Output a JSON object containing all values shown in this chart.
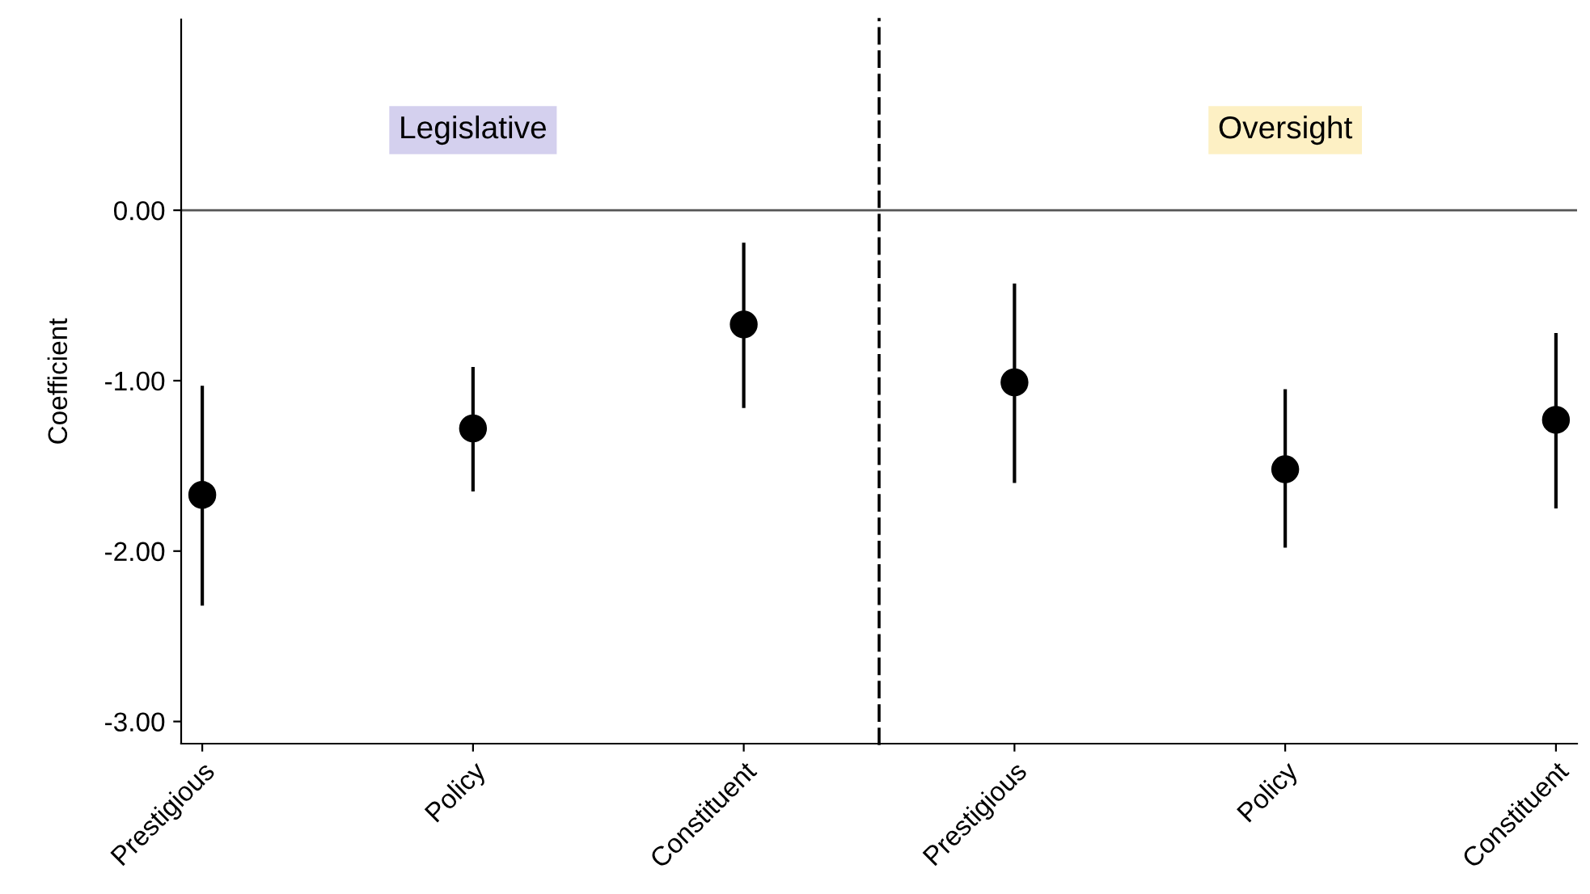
{
  "chart_data": [
    {
      "type": "scatter",
      "ylabel": "Coefficient",
      "categories": [
        "Prestigious",
        "Policy",
        "Constituent"
      ],
      "series": [
        {
          "color": "#000000",
          "values": [
            -1.67,
            -1.28,
            -0.67
          ],
          "errors": [
            [
              -2.31,
              -1.04
            ],
            [
              -1.64,
              -0.93
            ],
            [
              -1.15,
              -0.2
            ]
          ]
        }
      ],
      "ylim": [
        -3.13,
        1.12
      ],
      "yticks": [
        {
          "value": 0,
          "label": "0.00"
        },
        {
          "value": -1,
          "label": "-1.00"
        },
        {
          "value": -2,
          "label": "-2.00"
        },
        {
          "value": -3,
          "label": "-3.00"
        }
      ],
      "ref_lines": [
        {
          "axis": "y",
          "value": 0,
          "color": "#555555",
          "line_style": "solid"
        }
      ],
      "annotations": [
        "Legislative"
      ],
      "marker": "circle",
      "grid": false,
      "legend": false
    },
    {
      "type": "scatter",
      "categories": [
        "Prestigious",
        "Policy",
        "Constituent"
      ],
      "series": [
        {
          "color": "#000000",
          "values": [
            -1.01,
            -1.52,
            -1.23
          ],
          "errors": [
            [
              -1.59,
              -0.44
            ],
            [
              -1.97,
              -1.06
            ],
            [
              -1.74,
              -0.73
            ]
          ]
        }
      ],
      "ylim": [
        -3.13,
        1.12
      ],
      "tick_labels": "x",
      "ref_lines": [
        {
          "axis": "y",
          "value": 0,
          "color": "#555555",
          "line_style": "solid"
        }
      ],
      "annotations": [
        "Oversight"
      ],
      "marker": "circle",
      "grid": false,
      "legend": false
    }
  ]
}
